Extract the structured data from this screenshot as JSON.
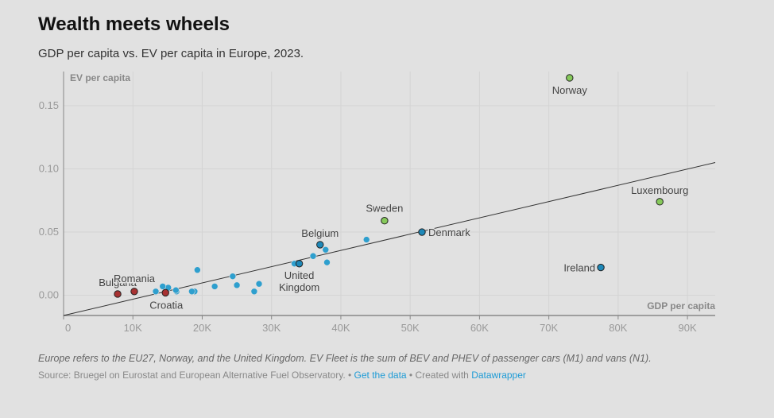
{
  "header": {
    "title": "Wealth meets wheels",
    "subtitle": "GDP per capita vs. EV per capita in Europe, 2023."
  },
  "footer": {
    "notes": "Europe refers to the EU27, Norway, and the United Kingdom. EV Fleet is the sum of BEV and PHEV of passenger cars (M1) and vans (N1).",
    "source": "Source: Bruegel on Eurostat and European Alternative Fuel Observatory.",
    "separator": " • ",
    "get_data": "Get the data",
    "created_with": "Created with",
    "tool": "Datawrapper"
  },
  "colors": {
    "background": "#e1e1e1",
    "default_point": "#2e9fce",
    "high_point": "#86c95b",
    "low_point": "#a83232",
    "highlight_mid": "#1e88b8",
    "axis": "#888888",
    "grid": "#d4d4d4",
    "trend": "#333333"
  },
  "chart_data": {
    "type": "scatter",
    "title": "Wealth meets wheels",
    "xlabel": "GDP per capita",
    "ylabel": "EV per capita",
    "xlim": [
      0,
      94000
    ],
    "ylim": [
      -0.016,
      0.177
    ],
    "x_ticks": [
      0,
      10000,
      20000,
      30000,
      40000,
      50000,
      60000,
      70000,
      80000,
      90000
    ],
    "x_tick_labels": [
      "0",
      "10K",
      "20K",
      "30K",
      "40K",
      "50K",
      "60K",
      "70K",
      "80K",
      "90K"
    ],
    "y_ticks": [
      0,
      0.05,
      0.1,
      0.15
    ],
    "y_tick_labels": [
      "0.00",
      "0.05",
      "0.10",
      "0.15"
    ],
    "trendline": {
      "x": [
        0,
        94000
      ],
      "y": [
        -0.016,
        0.105
      ]
    },
    "points": [
      {
        "label": "Norway",
        "x": 73000,
        "y": 0.172,
        "group": "high"
      },
      {
        "label": "Luxembourg",
        "x": 86000,
        "y": 0.074,
        "group": "high"
      },
      {
        "label": "Sweden",
        "x": 46300,
        "y": 0.059,
        "group": "high"
      },
      {
        "label": "Denmark",
        "x": 51700,
        "y": 0.05,
        "group": "mid"
      },
      {
        "label": "Belgium",
        "x": 37000,
        "y": 0.04,
        "group": "mid"
      },
      {
        "label": "Ireland",
        "x": 77500,
        "y": 0.022,
        "group": "mid"
      },
      {
        "label": "United Kingdom",
        "x": 34000,
        "y": 0.025,
        "group": "mid"
      },
      {
        "label": "Bulgaria",
        "x": 7800,
        "y": 0.001,
        "group": "low"
      },
      {
        "label": "Romania",
        "x": 10200,
        "y": 0.003,
        "group": "low"
      },
      {
        "label": "Croatia",
        "x": 14700,
        "y": 0.002,
        "group": "low"
      },
      {
        "label": "",
        "x": 43700,
        "y": 0.044,
        "group": "default"
      },
      {
        "label": "",
        "x": 37800,
        "y": 0.036,
        "group": "default"
      },
      {
        "label": "",
        "x": 36000,
        "y": 0.031,
        "group": "default"
      },
      {
        "label": "",
        "x": 38000,
        "y": 0.026,
        "group": "default"
      },
      {
        "label": "",
        "x": 33300,
        "y": 0.025,
        "group": "default"
      },
      {
        "label": "",
        "x": 28200,
        "y": 0.009,
        "group": "default"
      },
      {
        "label": "",
        "x": 27500,
        "y": 0.003,
        "group": "default"
      },
      {
        "label": "",
        "x": 24400,
        "y": 0.015,
        "group": "default"
      },
      {
        "label": "",
        "x": 25000,
        "y": 0.008,
        "group": "default"
      },
      {
        "label": "",
        "x": 21800,
        "y": 0.007,
        "group": "default"
      },
      {
        "label": "",
        "x": 19300,
        "y": 0.02,
        "group": "default"
      },
      {
        "label": "",
        "x": 18900,
        "y": 0.003,
        "group": "default"
      },
      {
        "label": "",
        "x": 18500,
        "y": 0.003,
        "group": "default"
      },
      {
        "label": "",
        "x": 16300,
        "y": 0.003,
        "group": "default"
      },
      {
        "label": "",
        "x": 16200,
        "y": 0.004,
        "group": "default"
      },
      {
        "label": "",
        "x": 15100,
        "y": 0.006,
        "group": "default"
      },
      {
        "label": "",
        "x": 14300,
        "y": 0.007,
        "group": "default"
      },
      {
        "label": "",
        "x": 13300,
        "y": 0.003,
        "group": "default"
      }
    ]
  }
}
